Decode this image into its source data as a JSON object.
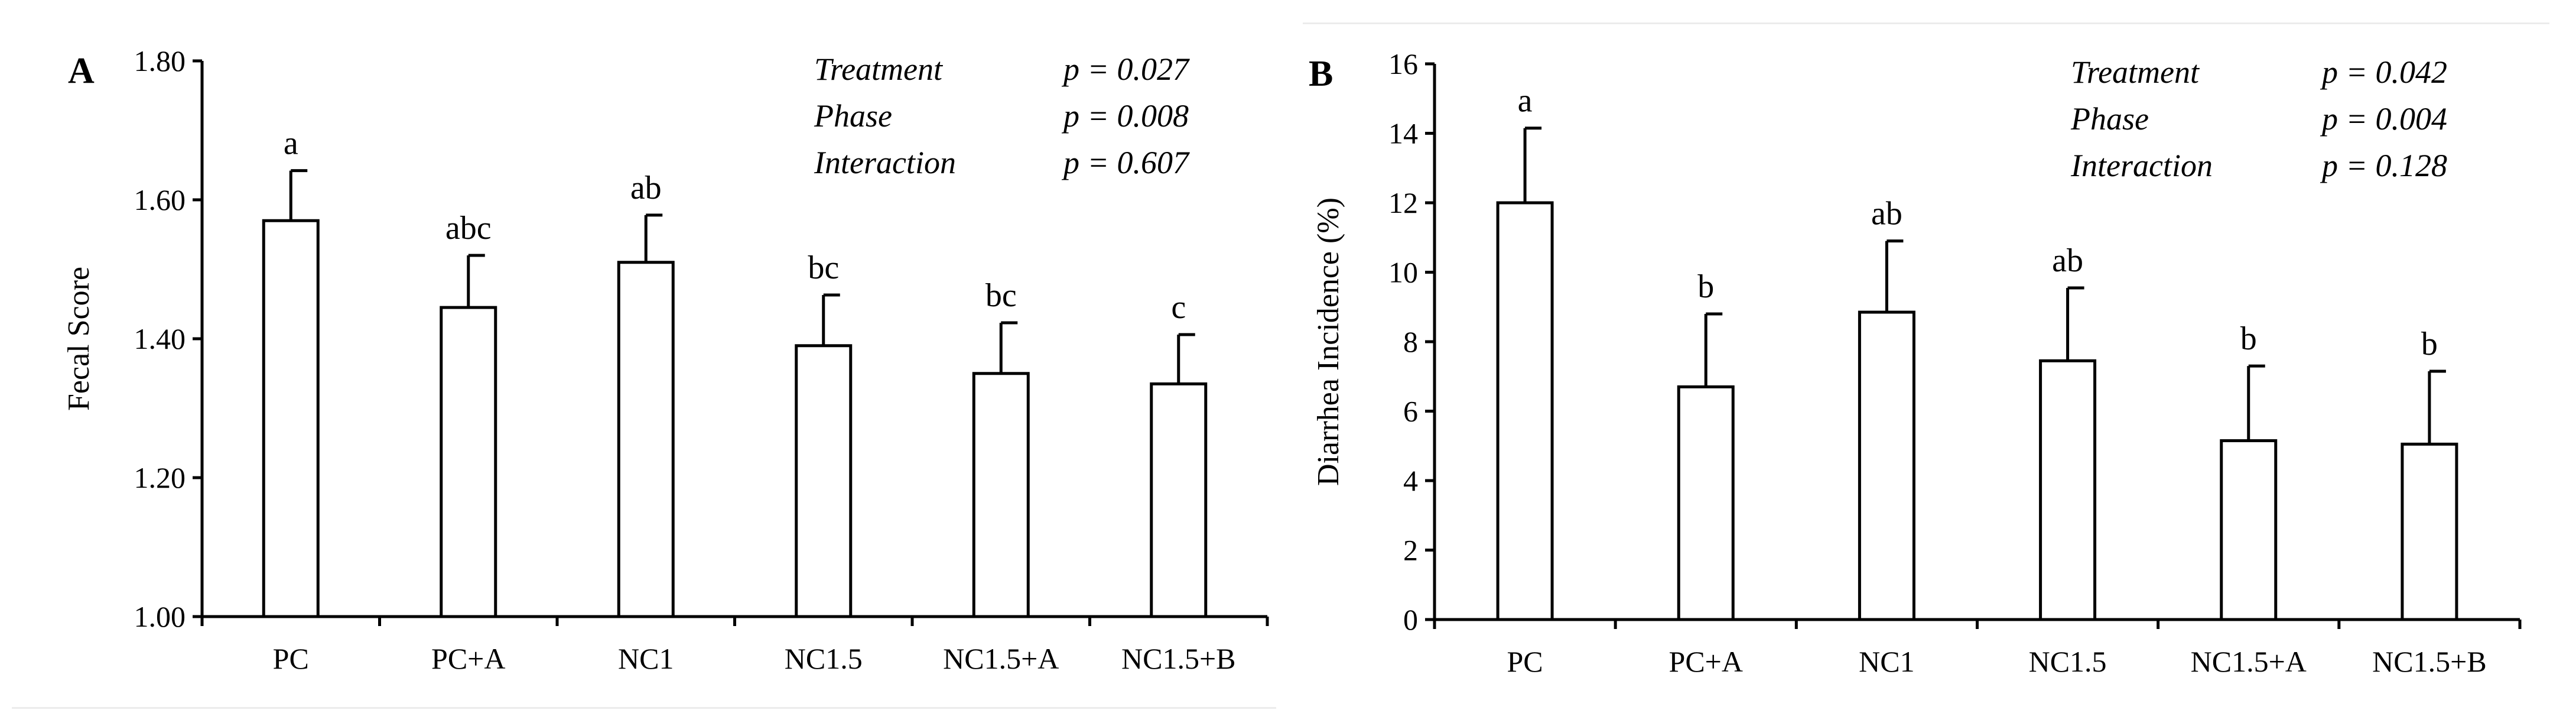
{
  "chart_data": [
    {
      "type": "bar",
      "panel_label": "A",
      "title": "",
      "xlabel": "",
      "ylabel": "Fecal Score",
      "categories": [
        "PC",
        "PC+A",
        "NC1",
        "NC1.5",
        "NC1.5+A",
        "NC1.5+B"
      ],
      "values": [
        1.57,
        1.445,
        1.51,
        1.39,
        1.35,
        1.335
      ],
      "error": [
        0.072,
        0.075,
        0.068,
        0.073,
        0.073,
        0.071
      ],
      "significance": [
        "a",
        "abc",
        "ab",
        "bc",
        "bc",
        "c"
      ],
      "ylim": [
        1.0,
        1.8
      ],
      "yticks": [
        1.0,
        1.2,
        1.4,
        1.6,
        1.8
      ],
      "ytick_labels": [
        "1.00",
        "1.20",
        "1.40",
        "1.60",
        "1.80"
      ],
      "grid": false,
      "legend": "none",
      "stats": [
        {
          "label": "Treatment",
          "value": "p = 0.027"
        },
        {
          "label": "Phase",
          "value": "p = 0.008"
        },
        {
          "label": "Interaction",
          "value": "p = 0.607"
        }
      ]
    },
    {
      "type": "bar",
      "panel_label": "B",
      "title": "",
      "xlabel": "",
      "ylabel": "Diarrhea Incidence (%)",
      "categories": [
        "PC",
        "PC+A",
        "NC1",
        "NC1.5",
        "NC1.5+A",
        "NC1.5+B"
      ],
      "values": [
        12.0,
        6.7,
        8.85,
        7.45,
        5.15,
        5.05
      ],
      "error": [
        2.15,
        2.1,
        2.05,
        2.1,
        2.15,
        2.1
      ],
      "significance": [
        "a",
        "b",
        "ab",
        "ab",
        "b",
        "b"
      ],
      "ylim": [
        0,
        16
      ],
      "yticks": [
        0,
        2,
        4,
        6,
        8,
        10,
        12,
        14,
        16
      ],
      "ytick_labels": [
        "0",
        "2",
        "4",
        "6",
        "8",
        "10",
        "12",
        "14",
        "16"
      ],
      "grid": false,
      "legend": "none",
      "stats": [
        {
          "label": "Treatment",
          "value": "p = 0.042"
        },
        {
          "label": "Phase",
          "value": "p = 0.004"
        },
        {
          "label": "Interaction",
          "value": "p = 0.128"
        }
      ]
    }
  ]
}
